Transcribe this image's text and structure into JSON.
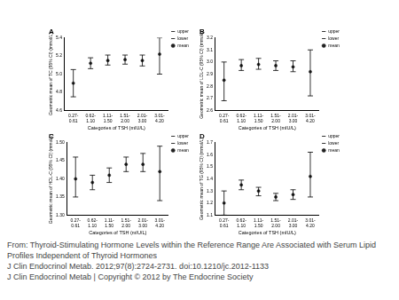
{
  "chart_data": [
    {
      "type": "errorbar",
      "title": "A",
      "x_label": "Categories of TSH (mIU/L)",
      "y_label": "Geometric mean of TC (95% CI) (mmol/L)",
      "categories": [
        "0.27-0.61",
        "0.62-1.10",
        "1.11-1.50",
        "1.51-2.00",
        "2.01-3.00",
        "3.01-4.20"
      ],
      "series": [
        {
          "name": "upper",
          "color": "#000000",
          "marker": "line",
          "values": [
            5.05,
            5.18,
            5.21,
            5.21,
            5.21,
            5.4
          ]
        },
        {
          "name": "lower",
          "color": "#000000",
          "marker": "line",
          "values": [
            4.75,
            5.06,
            5.1,
            5.11,
            5.09,
            5.0
          ]
        },
        {
          "name": "mean",
          "color": "#222222",
          "marker": "circle",
          "values": [
            4.9,
            5.12,
            5.15,
            5.16,
            5.15,
            5.22
          ]
        }
      ],
      "ylim": [
        4.6,
        5.4
      ],
      "yticks": [
        4.6,
        4.8,
        {
          "value": 5,
          "label": "5.0"
        },
        5.2,
        5.4
      ],
      "grid": false,
      "legend": "right"
    },
    {
      "type": "errorbar",
      "title": "B",
      "x_label": "Categories of TSH (mIU/L)",
      "y_label": "Geometric mean of LDL-C (95% CI) (mmol/L)",
      "categories": [
        "0.27-0.61",
        "0.62-1.10",
        "1.11-1.50",
        "1.51-2.00",
        "2.01-3.00",
        "3.01-4.20"
      ],
      "series": [
        {
          "name": "upper",
          "color": "#000000",
          "marker": "line",
          "values": [
            3.0,
            3.02,
            3.03,
            3.01,
            3.01,
            3.1
          ]
        },
        {
          "name": "lower",
          "color": "#000000",
          "marker": "line",
          "values": [
            2.68,
            2.93,
            2.94,
            2.93,
            2.92,
            2.72
          ]
        },
        {
          "name": "mean",
          "color": "#222222",
          "marker": "circle",
          "values": [
            2.85,
            2.97,
            2.98,
            2.97,
            2.96,
            2.92
          ]
        }
      ],
      "ylim": [
        2.6,
        3.2
      ],
      "yticks": [
        2.6,
        2.7,
        2.8,
        2.9,
        {
          "value": 3,
          "label": "3.0"
        },
        3.1,
        3.2
      ],
      "grid": false,
      "legend": "right"
    },
    {
      "type": "errorbar",
      "title": "C",
      "x_label": "Categories of TSH (mIU/L)",
      "y_label": "Geometric mean of HDL-C (95% CI) (mmol/L)",
      "categories": [
        "0.27-0.61",
        "0.62-1.10",
        "1.11-1.50",
        "1.51-2.00",
        "2.01-3.00",
        "3.01-4.20"
      ],
      "series": [
        {
          "name": "upper",
          "color": "#000000",
          "marker": "line",
          "values": [
            1.46,
            1.41,
            1.43,
            1.46,
            1.47,
            1.49
          ]
        },
        {
          "name": "lower",
          "color": "#000000",
          "marker": "line",
          "values": [
            1.35,
            1.37,
            1.39,
            1.42,
            1.42,
            1.34
          ]
        },
        {
          "name": "mean",
          "color": "#222222",
          "marker": "circle",
          "values": [
            1.4,
            1.39,
            1.41,
            1.44,
            1.44,
            1.42
          ]
        }
      ],
      "ylim": [
        1.3,
        1.5
      ],
      "yticks": [
        {
          "value": 1.3,
          "label": "1.30"
        },
        1.35,
        {
          "value": 1.4,
          "label": "1.40"
        },
        1.45,
        {
          "value": 1.5,
          "label": "1.50"
        }
      ],
      "grid": false,
      "legend": "right"
    },
    {
      "type": "errorbar",
      "title": "D",
      "x_label": "Categories of TSH (mIU/L)",
      "y_label": "Geometric mean of TG (95% CI) (mmol/L)",
      "categories": [
        "0.27-0.61",
        "0.62-1.10",
        "1.11-1.50",
        "1.51-2.00",
        "2.01-3.00",
        "3.01-4.20"
      ],
      "series": [
        {
          "name": "upper",
          "color": "#000000",
          "marker": "line",
          "values": [
            1.3,
            1.39,
            1.33,
            1.28,
            1.31,
            1.62
          ]
        },
        {
          "name": "lower",
          "color": "#000000",
          "marker": "line",
          "values": [
            1.1,
            1.31,
            1.26,
            1.22,
            1.23,
            1.25
          ]
        },
        {
          "name": "mean",
          "color": "#222222",
          "marker": "circle",
          "values": [
            1.2,
            1.35,
            1.3,
            1.25,
            1.27,
            1.42
          ]
        }
      ],
      "ylim": [
        1.1,
        1.7
      ],
      "yticks": [
        1.1,
        1.2,
        1.3,
        1.4,
        1.5,
        1.6,
        1.7
      ],
      "grid": false,
      "legend": "right"
    }
  ],
  "caption": {
    "lines": [
      "From: Thyroid-Stimulating Hormone Levels within the Reference Range Are Associated with Serum Lipid Profiles Independent of Thyroid Hormones",
      "J Clin Endocrinol Metab. 2012;97(8):2724-2731. doi:10.1210/jc.2012-1133",
      "J Clin Endocrinol Metab | Copyright © 2012 by The Endocrine Society"
    ]
  }
}
